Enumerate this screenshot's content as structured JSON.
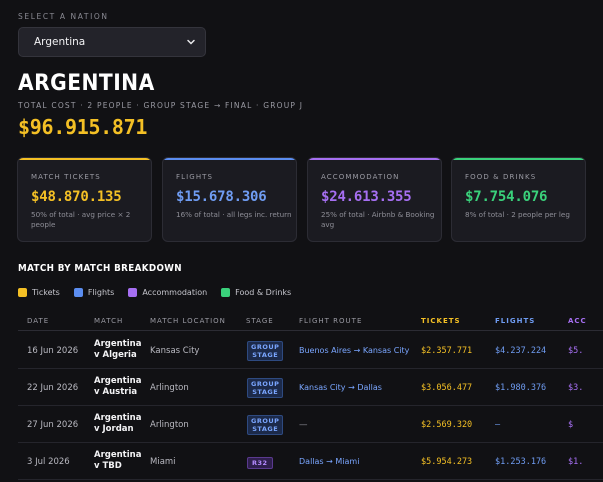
{
  "selector": {
    "label": "SELECT A NATION",
    "value": "Argentina"
  },
  "header": {
    "country": "ARGENTINA",
    "subtitle": "TOTAL COST · 2 PEOPLE · GROUP STAGE → FINAL · GROUP J",
    "total": "$96.915.871"
  },
  "colors": {
    "tickets": "#f4c025",
    "flights": "#5b8df0",
    "accommodation": "#a66ff2",
    "food": "#3ad17b"
  },
  "cards": [
    {
      "label": "MATCH TICKETS",
      "value": "$48.870.135",
      "note": "50% of total · avg price × 2 people",
      "color": "#f4c025"
    },
    {
      "label": "FLIGHTS",
      "value": "$15.678.306",
      "note": "16% of total · all legs inc. return",
      "color": "#5b8df0"
    },
    {
      "label": "ACCOMMODATION",
      "value": "$24.613.355",
      "note": "25% of total · Airbnb & Booking avg",
      "color": "#a66ff2"
    },
    {
      "label": "FOOD & DRINKS",
      "value": "$7.754.076",
      "note": "8% of total · 2 people per leg",
      "color": "#3ad17b"
    }
  ],
  "breakdown": {
    "title": "MATCH BY MATCH BREAKDOWN",
    "legend": [
      "Tickets",
      "Flights",
      "Accommodation",
      "Food & Drinks"
    ],
    "columns": [
      "DATE",
      "MATCH",
      "MATCH LOCATION",
      "STAGE",
      "FLIGHT ROUTE",
      "TICKETS",
      "FLIGHTS",
      "ACC"
    ],
    "rows": [
      {
        "date": "16 Jun 2026",
        "match1": "Argentina",
        "match2": "v Algeria",
        "location": "Kansas City",
        "stage1": "GROUP",
        "stage2": "STAGE",
        "route": "Buenos Aires → Kansas City",
        "tickets": "$2.357.771",
        "flights": "$4.237.224",
        "acc": "$5."
      },
      {
        "date": "22 Jun 2026",
        "match1": "Argentina",
        "match2": "v Austria",
        "location": "Arlington",
        "stage1": "GROUP",
        "stage2": "STAGE",
        "route": "Kansas City → Dallas",
        "tickets": "$3.056.477",
        "flights": "$1.980.376",
        "acc": "$3."
      },
      {
        "date": "27 Jun 2026",
        "match1": "Argentina",
        "match2": "v Jordan",
        "location": "Arlington",
        "stage1": "GROUP",
        "stage2": "STAGE",
        "route": "—",
        "tickets": "$2.569.320",
        "flights": "—",
        "acc": "$"
      },
      {
        "date": "3 Jul 2026",
        "match1": "Argentina",
        "match2": "v TBD",
        "location": "Miami",
        "stage1": "R32",
        "stage2": "",
        "route": "Dallas → Miami",
        "tickets": "$5.954.273",
        "flights": "$1.253.176",
        "acc": "$1."
      }
    ]
  }
}
